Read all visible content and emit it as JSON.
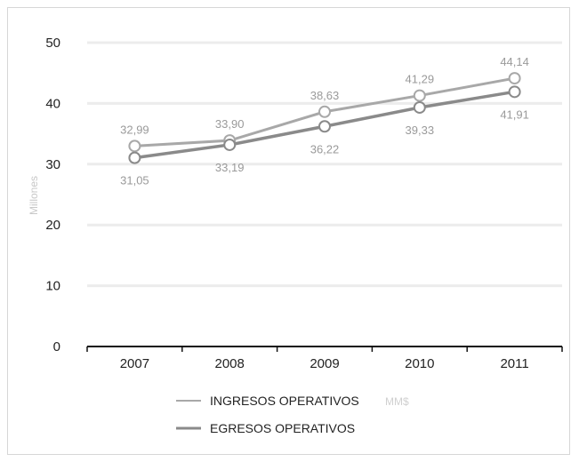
{
  "chart_data": {
    "type": "line",
    "categories": [
      "2007",
      "2008",
      "2009",
      "2010",
      "2011"
    ],
    "series": [
      {
        "name": "INGRESOS OPERATIVOS",
        "values": [
          32.99,
          33.9,
          38.63,
          41.29,
          44.14
        ],
        "labels": [
          "32,99",
          "33,90",
          "38,63",
          "41,29",
          "44,14"
        ],
        "color": "#a8a8a8"
      },
      {
        "name": "EGRESOS OPERATIVOS",
        "values": [
          31.05,
          33.19,
          36.22,
          39.33,
          41.91
        ],
        "labels": [
          "31,05",
          "33,19",
          "36,22",
          "39,33",
          "41,91"
        ],
        "color": "#8a8a8a"
      }
    ],
    "yticks": [
      "0",
      "10",
      "20",
      "30",
      "40",
      "50"
    ],
    "ylim": [
      0,
      50
    ],
    "ylabel": "Millones",
    "legend_note": "MM$",
    "grid": true,
    "legend_position": "bottom"
  }
}
